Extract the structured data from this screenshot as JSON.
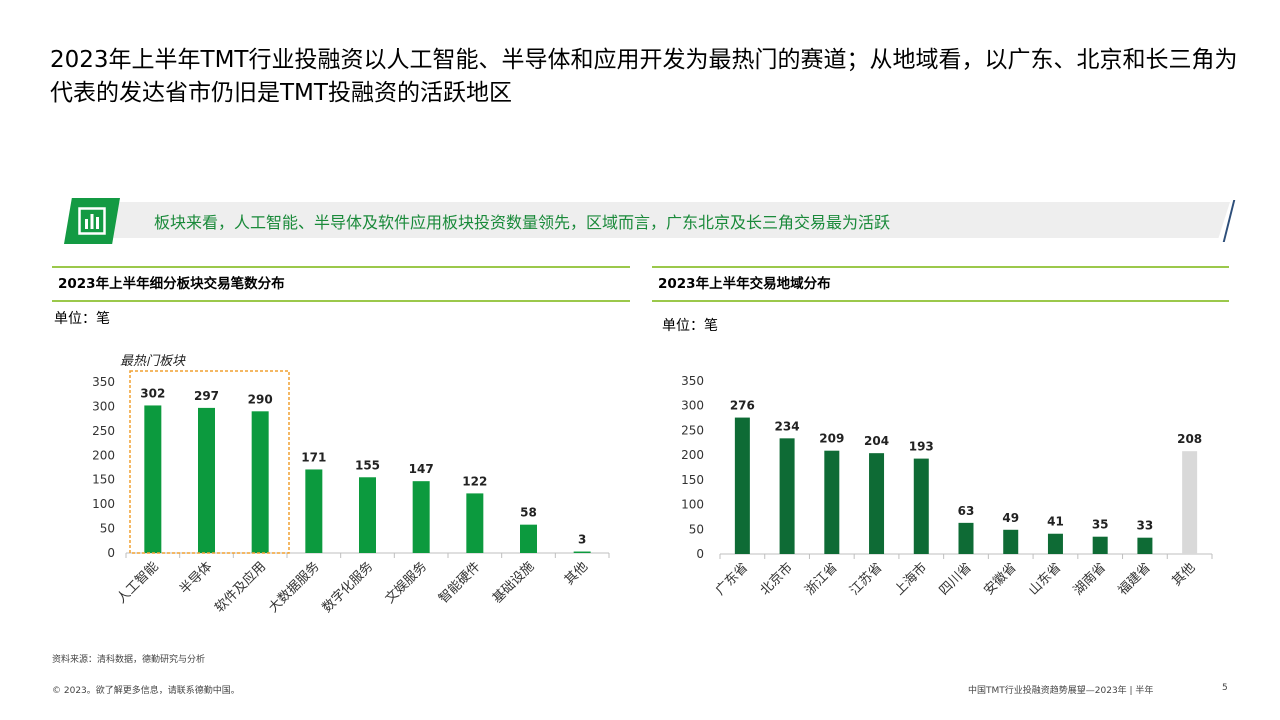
{
  "page": {
    "title": "2023年上半年TMT行业投融资以人工智能、半导体和应用开发为最热门的赛道；从地域看，以广东、北京和长三角为代表的发达省市仍旧是TMT投融资的活跃地区"
  },
  "banner": {
    "icon": "bar-chart-icon",
    "text": "板块来看，人工智能、半导体及软件应用板块投资数量领先，区域而言，广东北京及长三角交易最为活跃"
  },
  "left_panel": {
    "title": "2023年上半年细分板块交易笔数分布",
    "unit": "单位：笔",
    "highlight_label": "最热门板块"
  },
  "right_panel": {
    "title": "2023年上半年交易地域分布",
    "unit": "单位：笔"
  },
  "chart_data": [
    {
      "type": "bar",
      "title": "2023年上半年细分板块交易笔数分布",
      "categories": [
        "人工智能",
        "半导体",
        "软件及应用",
        "大数据服务",
        "数字化服务",
        "文娱服务",
        "智能硬件",
        "基础设施",
        "其他"
      ],
      "values": [
        302,
        297,
        290,
        171,
        155,
        147,
        122,
        58,
        3
      ],
      "yticks": [
        0,
        50,
        100,
        150,
        200,
        250,
        300,
        350
      ],
      "ylim": [
        0,
        350
      ],
      "grid": false,
      "highlight_categories": [
        "人工智能",
        "半导体",
        "软件及应用"
      ],
      "colors": {
        "bar": "#0c9a3e",
        "highlight_box": "#f0a030"
      }
    },
    {
      "type": "bar",
      "title": "2023年上半年交易地域分布",
      "categories": [
        "广东省",
        "北京市",
        "浙江省",
        "江苏省",
        "上海市",
        "四川省",
        "安徽省",
        "山东省",
        "湖南省",
        "福建省",
        "其他"
      ],
      "values": [
        276,
        234,
        209,
        204,
        193,
        63,
        49,
        41,
        35,
        33,
        208
      ],
      "yticks": [
        0,
        50,
        100,
        150,
        200,
        250,
        300,
        350
      ],
      "ylim": [
        0,
        350
      ],
      "grid": false,
      "colors": {
        "bar": "#0e6b35",
        "other_bar": "#d9d9d9"
      }
    }
  ],
  "footer": {
    "source": "资料来源：清科数据，德勤研究与分析",
    "copyright": "© 2023。欲了解更多信息，请联系德勤中国。",
    "report_name": "中国TMT行业投融资趋势展望—2023年 | 半年",
    "page_number": "5"
  }
}
